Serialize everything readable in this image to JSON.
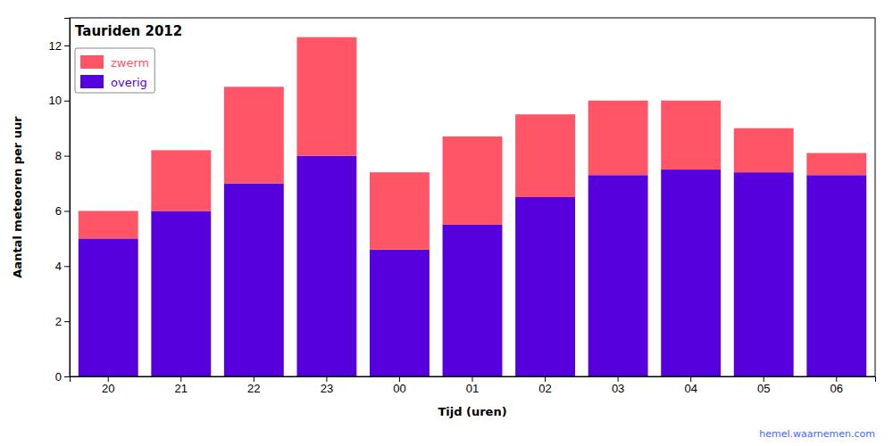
{
  "chart_data": {
    "type": "bar",
    "stacked": true,
    "title": "Tauriden 2012",
    "xlabel": "Tijd (uren)",
    "ylabel": "Aantal meteoren per uur",
    "categories": [
      "20",
      "21",
      "22",
      "23",
      "00",
      "01",
      "02",
      "03",
      "04",
      "05",
      "06"
    ],
    "series": [
      {
        "name": "overig",
        "color": "#5500dd",
        "values": [
          5,
          6,
          7,
          8,
          4.6,
          5.5,
          6.5,
          7.3,
          7.5,
          7.4,
          7.3
        ]
      },
      {
        "name": "zwerm",
        "color": "#ff5566",
        "values": [
          1,
          2.2,
          3.5,
          4.3,
          2.8,
          3.2,
          3.0,
          2.7,
          2.5,
          1.6,
          0.8
        ]
      }
    ],
    "ylim": [
      0,
      13
    ],
    "yticks": [
      0,
      2,
      4,
      6,
      8,
      10,
      12
    ],
    "grid": false,
    "legend": "upper left",
    "annotations": [
      "hemel.waarnemen.com"
    ]
  }
}
